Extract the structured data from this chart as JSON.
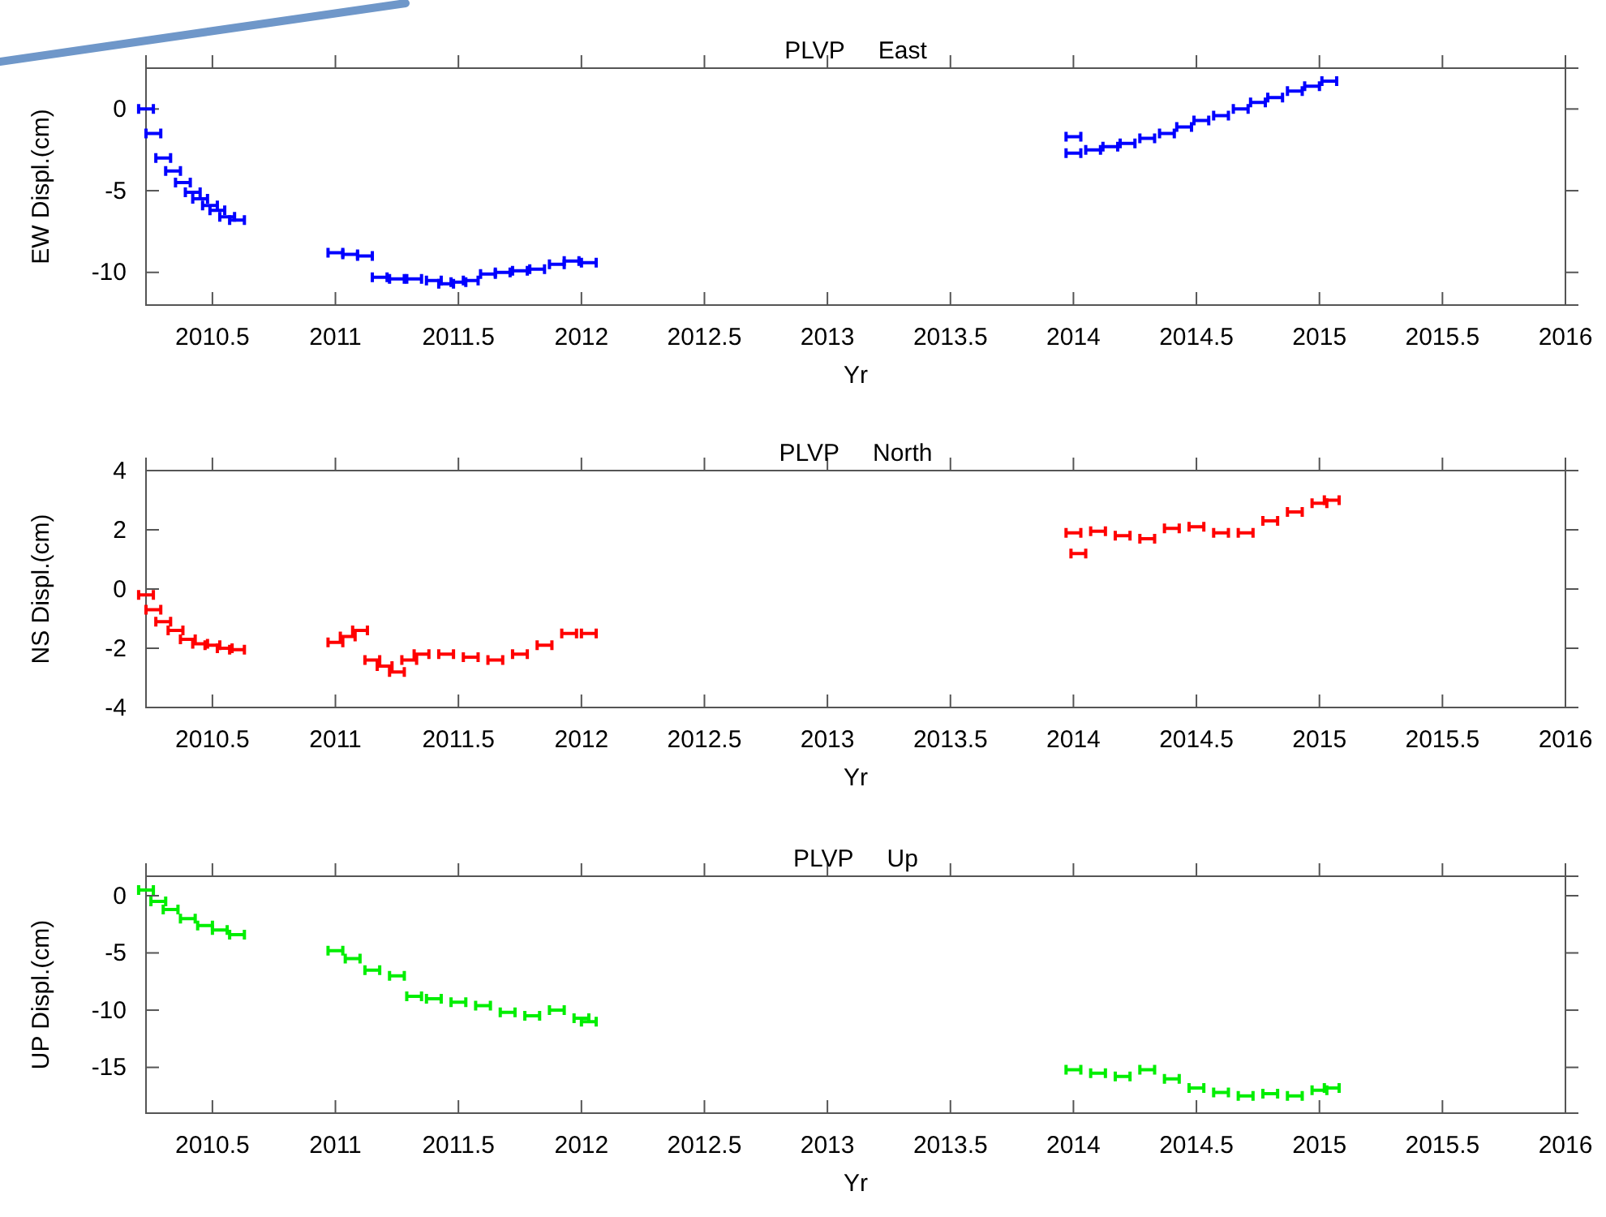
{
  "chart_data": [
    {
      "type": "scatter",
      "title": "PLVP     East",
      "xlabel": "Yr",
      "ylabel": "EW Displ.(cm)",
      "xlim": [
        2010.23,
        2016
      ],
      "xticks": [
        2010.5,
        2011,
        2011.5,
        2012,
        2012.5,
        2013,
        2013.5,
        2014,
        2014.5,
        2015,
        2015.5,
        2016
      ],
      "ylim": [
        -12,
        2.5
      ],
      "yticks": [
        -10,
        -5,
        0
      ],
      "series": [
        {
          "color": "#0000ff",
          "x": [
            2010.23,
            2010.26,
            2010.3,
            2010.34,
            2010.38,
            2010.42,
            2010.45,
            2010.49,
            2010.52,
            2010.56,
            2010.6,
            2011.0,
            2011.06,
            2011.12,
            2011.18,
            2011.25,
            2011.32,
            2011.4,
            2011.45,
            2011.5,
            2011.55,
            2011.62,
            2011.68,
            2011.75,
            2011.82,
            2011.9,
            2011.96,
            2012.03,
            2014.0,
            2014.0,
            2014.08,
            2014.15,
            2014.22,
            2014.3,
            2014.38,
            2014.45,
            2014.52,
            2014.6,
            2014.68,
            2014.75,
            2014.82,
            2014.9,
            2014.97,
            2015.04
          ],
          "values": [
            0,
            -1.5,
            -3,
            -3.8,
            -4.5,
            -5.1,
            -5.5,
            -5.9,
            -6.2,
            -6.6,
            -6.8,
            -8.8,
            -8.9,
            -9.0,
            -10.3,
            -10.4,
            -10.4,
            -10.5,
            -10.7,
            -10.6,
            -10.5,
            -10.1,
            -10.0,
            -9.9,
            -9.8,
            -9.5,
            -9.3,
            -9.4,
            -2.7,
            -1.7,
            -2.5,
            -2.3,
            -2.1,
            -1.8,
            -1.5,
            -1.1,
            -0.7,
            -0.4,
            0,
            0.4,
            0.7,
            1.1,
            1.4,
            1.7
          ],
          "xerrors": [
            0.03,
            0.03,
            0.03,
            0.03,
            0.03,
            0.03,
            0.03,
            0.03,
            0.03,
            0.03,
            0.03,
            0.03,
            0.03,
            0.03,
            0.03,
            0.03,
            0.03,
            0.03,
            0.03,
            0.03,
            0.03,
            0.03,
            0.03,
            0.03,
            0.03,
            0.03,
            0.03,
            0.03,
            0.03,
            0.03,
            0.03,
            0.03,
            0.03,
            0.03,
            0.03,
            0.03,
            0.03,
            0.03,
            0.03,
            0.03,
            0.03,
            0.03,
            0.03,
            0.03
          ]
        }
      ]
    },
    {
      "type": "scatter",
      "title": "PLVP     North",
      "xlabel": "Yr",
      "ylabel": "NS Displ.(cm)",
      "xlim": [
        2010.23,
        2016
      ],
      "xticks": [
        2010.5,
        2011,
        2011.5,
        2012,
        2012.5,
        2013,
        2013.5,
        2014,
        2014.5,
        2015,
        2015.5,
        2016
      ],
      "ylim": [
        -4,
        4
      ],
      "yticks": [
        -4,
        -2,
        0,
        2,
        4
      ],
      "series": [
        {
          "color": "#ff0000",
          "x": [
            2010.23,
            2010.26,
            2010.3,
            2010.35,
            2010.4,
            2010.45,
            2010.5,
            2010.55,
            2010.6,
            2011.0,
            2011.05,
            2011.1,
            2011.15,
            2011.2,
            2011.25,
            2011.3,
            2011.35,
            2011.45,
            2011.55,
            2011.65,
            2011.75,
            2011.85,
            2011.95,
            2012.03,
            2014.0,
            2014.02,
            2014.1,
            2014.2,
            2014.3,
            2014.4,
            2014.5,
            2014.6,
            2014.7,
            2014.8,
            2014.9,
            2015.0,
            2015.05
          ],
          "values": [
            -0.2,
            -0.7,
            -1.1,
            -1.4,
            -1.7,
            -1.85,
            -1.9,
            -2.0,
            -2.05,
            -1.8,
            -1.6,
            -1.4,
            -2.4,
            -2.6,
            -2.8,
            -2.4,
            -2.2,
            -2.2,
            -2.3,
            -2.4,
            -2.2,
            -1.9,
            -1.5,
            -1.5,
            1.9,
            1.2,
            1.95,
            1.8,
            1.7,
            2.05,
            2.1,
            1.9,
            1.9,
            2.3,
            2.6,
            2.9,
            3.0
          ],
          "xerrors": [
            0.03,
            0.03,
            0.03,
            0.03,
            0.03,
            0.03,
            0.03,
            0.03,
            0.03,
            0.03,
            0.03,
            0.03,
            0.03,
            0.03,
            0.03,
            0.03,
            0.03,
            0.03,
            0.03,
            0.03,
            0.03,
            0.03,
            0.03,
            0.03,
            0.03,
            0.03,
            0.03,
            0.03,
            0.03,
            0.03,
            0.03,
            0.03,
            0.03,
            0.03,
            0.03,
            0.03,
            0.03
          ]
        }
      ]
    },
    {
      "type": "scatter",
      "title": "PLVP     Up",
      "xlabel": "Yr",
      "ylabel": "UP Displ.(cm)",
      "xlim": [
        2010.23,
        2016
      ],
      "xticks": [
        2010.5,
        2011,
        2011.5,
        2012,
        2012.5,
        2013,
        2013.5,
        2014,
        2014.5,
        2015,
        2015.5,
        2016
      ],
      "ylim": [
        -19,
        1.7
      ],
      "yticks": [
        -15,
        -10,
        -5,
        0
      ],
      "series": [
        {
          "color": "#00ee00",
          "x": [
            2010.23,
            2010.28,
            2010.33,
            2010.4,
            2010.47,
            2010.53,
            2010.6,
            2011.0,
            2011.07,
            2011.15,
            2011.25,
            2011.32,
            2011.4,
            2011.5,
            2011.6,
            2011.7,
            2011.8,
            2011.9,
            2012.0,
            2012.03,
            2014.0,
            2014.1,
            2014.2,
            2014.3,
            2014.4,
            2014.5,
            2014.6,
            2014.7,
            2014.8,
            2014.9,
            2015.0,
            2015.05
          ],
          "values": [
            0.5,
            -0.5,
            -1.2,
            -2.0,
            -2.6,
            -3.0,
            -3.4,
            -4.8,
            -5.5,
            -6.5,
            -7.0,
            -8.8,
            -9.0,
            -9.3,
            -9.6,
            -10.2,
            -10.5,
            -10.0,
            -10.7,
            -11.0,
            -15.2,
            -15.5,
            -15.8,
            -15.2,
            -16.0,
            -16.8,
            -17.2,
            -17.5,
            -17.3,
            -17.5,
            -17.0,
            -16.8
          ],
          "xerrors": [
            0.03,
            0.03,
            0.03,
            0.03,
            0.03,
            0.03,
            0.03,
            0.03,
            0.03,
            0.03,
            0.03,
            0.03,
            0.03,
            0.03,
            0.03,
            0.03,
            0.03,
            0.03,
            0.03,
            0.03,
            0.03,
            0.03,
            0.03,
            0.03,
            0.03,
            0.03,
            0.03,
            0.03,
            0.03,
            0.03,
            0.03,
            0.03
          ]
        }
      ]
    }
  ]
}
